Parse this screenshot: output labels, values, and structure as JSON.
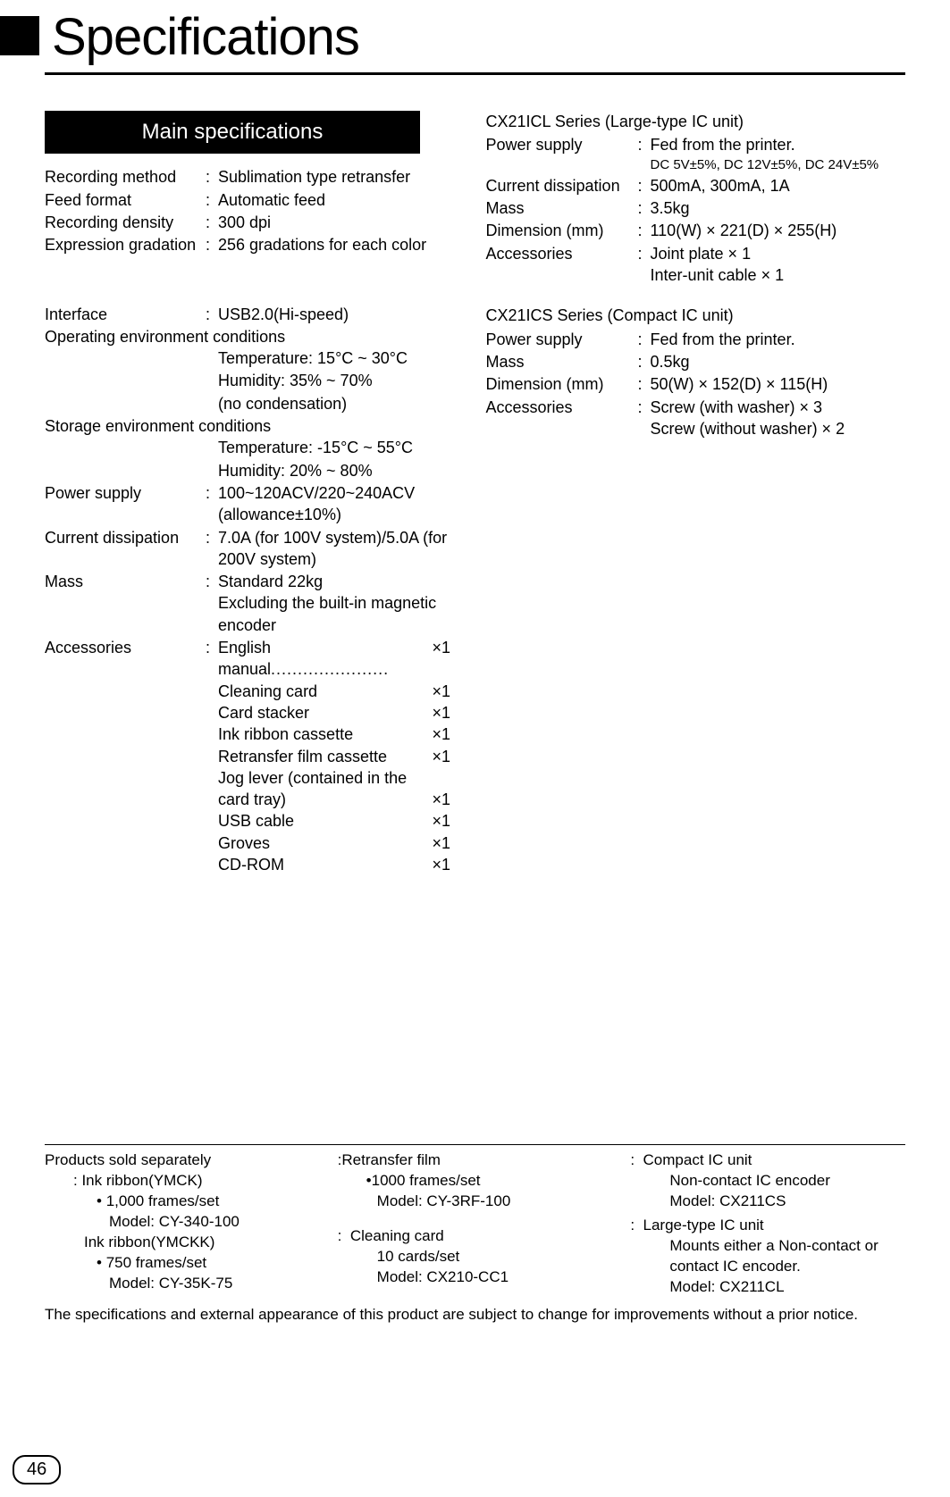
{
  "page": {
    "title": "Specifications",
    "section_header": "Main specifications",
    "page_number": "46",
    "disclaimer": "The specifications and external appearance of this product are subject to change for improvements without a prior notice."
  },
  "left": {
    "recording_method": {
      "label": "Recording method",
      "value": "Sublimation type retransfer"
    },
    "feed_format": {
      "label": "Feed format",
      "value": "Automatic feed"
    },
    "recording_density": {
      "label": "Recording density",
      "value": "300 dpi"
    },
    "expression_grad": {
      "label": "Expression gradation",
      "value": "256 gradations for each color"
    },
    "interface": {
      "label": "Interface",
      "value": "USB2.0(Hi-speed)"
    },
    "op_env": {
      "label": "Operating environment conditions",
      "temp": "Temperature: 15°C ~ 30°C",
      "humidity": "Humidity: 35% ~ 70%",
      "cond": "(no condensation)"
    },
    "storage_env": {
      "label": "Storage environment conditions",
      "temp": "Temperature: -15°C ~ 55°C",
      "humidity": "Humidity: 20% ~ 80%"
    },
    "power_supply": {
      "label": "Power supply",
      "l1": "100~120ACV/220~240ACV",
      "l2": "(allowance±10%)"
    },
    "current_diss": {
      "label": "Current dissipation",
      "l1": "7.0A (for 100V system)/5.0A (for",
      "l2": "200V system)"
    },
    "mass": {
      "label": "Mass",
      "l1": "Standard 22kg",
      "l2": "Excluding the built-in magnetic",
      "l3": "encoder"
    },
    "accessories": {
      "label": "Accessories",
      "items": [
        {
          "name": "English manual",
          "qty": "×1",
          "dotted": true
        },
        {
          "name": "Cleaning card",
          "qty": "×1"
        },
        {
          "name": "Card stacker",
          "qty": "×1"
        },
        {
          "name": "Ink ribbon cassette",
          "qty": "×1"
        },
        {
          "name": "Retransfer film cassette",
          "qty": "×1"
        },
        {
          "name": "Jog lever (contained in the card tray)",
          "qty": "×1",
          "wrap": true
        },
        {
          "name": "USB cable",
          "qty": "×1"
        },
        {
          "name": "Groves",
          "qty": "×1"
        },
        {
          "name": "CD-ROM",
          "qty": "×1"
        }
      ]
    }
  },
  "right": {
    "cx21icl": {
      "title": "CX21ICL Series (Large-type IC unit)",
      "power": {
        "label": "Power supply",
        "l1": "Fed from the printer.",
        "l2": "DC 5V±5%, DC 12V±5%, DC 24V±5%"
      },
      "current": {
        "label": "Current dissipation",
        "value": "500mA, 300mA, 1A"
      },
      "mass": {
        "label": "Mass",
        "value": "3.5kg"
      },
      "dim": {
        "label": "Dimension (mm)",
        "value": "110(W) × 221(D) × 255(H)"
      },
      "acc": {
        "label": "Accessories",
        "l1": "Joint plate × 1",
        "l2": "Inter-unit cable × 1"
      }
    },
    "cx21ics": {
      "title": "CX21ICS Series (Compact IC unit)",
      "power": {
        "label": "Power supply",
        "value": "Fed from the printer."
      },
      "mass": {
        "label": "Mass",
        "value": "0.5kg"
      },
      "dim": {
        "label": "Dimension (mm)",
        "value": "50(W) × 152(D) × 115(H)"
      },
      "acc": {
        "label": "Accessories",
        "l1": "Screw (with washer) × 3",
        "l2": "Screw (without washer) × 2"
      }
    }
  },
  "bottom": {
    "col1": {
      "heading": "Products sold separately",
      "ymck_h": "Ink ribbon(YMCK)",
      "ymck_1": "1,000 frames/set",
      "ymck_2": "Model: CY-340-100",
      "ymckk_h": "Ink ribbon(YMCKK)",
      "ymckk_1": "750 frames/set",
      "ymckk_2": "Model: CY-35K-75"
    },
    "col2": {
      "rfilm_h": ":Retransfer film",
      "rfilm_1": "•1000 frames/set",
      "rfilm_2": "Model: CY-3RF-100",
      "clean_h": "Cleaning card",
      "clean_1": "10 cards/set",
      "clean_2": "Model: CX210-CC1"
    },
    "col3": {
      "compact_h": "Compact IC unit",
      "compact_1": "Non-contact IC encoder",
      "compact_2": "Model: CX211CS",
      "large_h": "Large-type IC unit",
      "large_1": "Mounts either a Non-contact or",
      "large_2": "contact IC encoder.",
      "large_3": "Model: CX211CL"
    }
  }
}
